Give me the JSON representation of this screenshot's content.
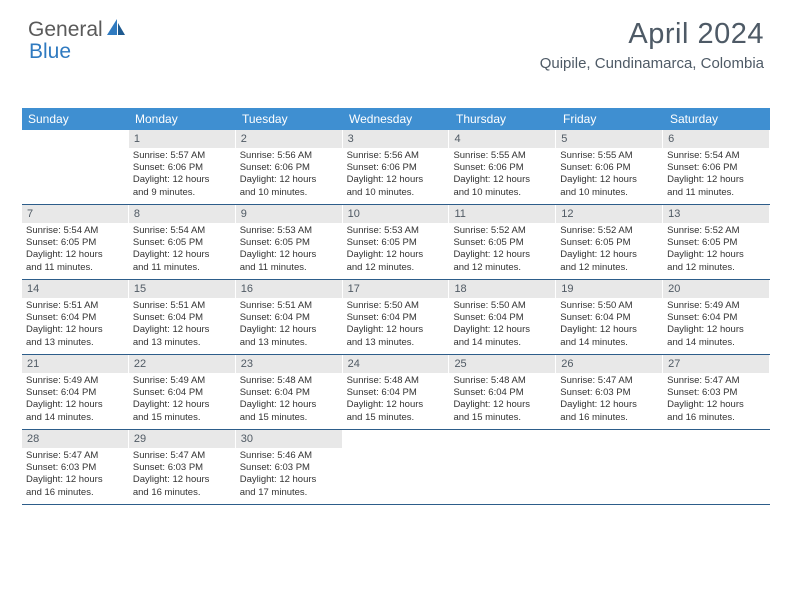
{
  "logo": {
    "text1": "General",
    "text2": "Blue"
  },
  "title": "April 2024",
  "location": "Quipile, Cundinamarca, Colombia",
  "colors": {
    "header_bg": "#3f8fd1",
    "header_text": "#ffffff",
    "row_border": "#2d5d8a",
    "daynum_bg": "#e8e8e8",
    "daynum_text": "#505a64",
    "body_text": "#333333",
    "title_text": "#4e5a66",
    "logo_gray": "#5a5a5a",
    "logo_blue": "#2f7ac0",
    "page_bg": "#ffffff"
  },
  "weekdays": [
    "Sunday",
    "Monday",
    "Tuesday",
    "Wednesday",
    "Thursday",
    "Friday",
    "Saturday"
  ],
  "weeks": [
    [
      null,
      {
        "n": "1",
        "sr": "5:57 AM",
        "ss": "6:06 PM",
        "dl1": "12 hours",
        "dl2": "and 9 minutes."
      },
      {
        "n": "2",
        "sr": "5:56 AM",
        "ss": "6:06 PM",
        "dl1": "12 hours",
        "dl2": "and 10 minutes."
      },
      {
        "n": "3",
        "sr": "5:56 AM",
        "ss": "6:06 PM",
        "dl1": "12 hours",
        "dl2": "and 10 minutes."
      },
      {
        "n": "4",
        "sr": "5:55 AM",
        "ss": "6:06 PM",
        "dl1": "12 hours",
        "dl2": "and 10 minutes."
      },
      {
        "n": "5",
        "sr": "5:55 AM",
        "ss": "6:06 PM",
        "dl1": "12 hours",
        "dl2": "and 10 minutes."
      },
      {
        "n": "6",
        "sr": "5:54 AM",
        "ss": "6:06 PM",
        "dl1": "12 hours",
        "dl2": "and 11 minutes."
      }
    ],
    [
      {
        "n": "7",
        "sr": "5:54 AM",
        "ss": "6:05 PM",
        "dl1": "12 hours",
        "dl2": "and 11 minutes."
      },
      {
        "n": "8",
        "sr": "5:54 AM",
        "ss": "6:05 PM",
        "dl1": "12 hours",
        "dl2": "and 11 minutes."
      },
      {
        "n": "9",
        "sr": "5:53 AM",
        "ss": "6:05 PM",
        "dl1": "12 hours",
        "dl2": "and 11 minutes."
      },
      {
        "n": "10",
        "sr": "5:53 AM",
        "ss": "6:05 PM",
        "dl1": "12 hours",
        "dl2": "and 12 minutes."
      },
      {
        "n": "11",
        "sr": "5:52 AM",
        "ss": "6:05 PM",
        "dl1": "12 hours",
        "dl2": "and 12 minutes."
      },
      {
        "n": "12",
        "sr": "5:52 AM",
        "ss": "6:05 PM",
        "dl1": "12 hours",
        "dl2": "and 12 minutes."
      },
      {
        "n": "13",
        "sr": "5:52 AM",
        "ss": "6:05 PM",
        "dl1": "12 hours",
        "dl2": "and 12 minutes."
      }
    ],
    [
      {
        "n": "14",
        "sr": "5:51 AM",
        "ss": "6:04 PM",
        "dl1": "12 hours",
        "dl2": "and 13 minutes."
      },
      {
        "n": "15",
        "sr": "5:51 AM",
        "ss": "6:04 PM",
        "dl1": "12 hours",
        "dl2": "and 13 minutes."
      },
      {
        "n": "16",
        "sr": "5:51 AM",
        "ss": "6:04 PM",
        "dl1": "12 hours",
        "dl2": "and 13 minutes."
      },
      {
        "n": "17",
        "sr": "5:50 AM",
        "ss": "6:04 PM",
        "dl1": "12 hours",
        "dl2": "and 13 minutes."
      },
      {
        "n": "18",
        "sr": "5:50 AM",
        "ss": "6:04 PM",
        "dl1": "12 hours",
        "dl2": "and 14 minutes."
      },
      {
        "n": "19",
        "sr": "5:50 AM",
        "ss": "6:04 PM",
        "dl1": "12 hours",
        "dl2": "and 14 minutes."
      },
      {
        "n": "20",
        "sr": "5:49 AM",
        "ss": "6:04 PM",
        "dl1": "12 hours",
        "dl2": "and 14 minutes."
      }
    ],
    [
      {
        "n": "21",
        "sr": "5:49 AM",
        "ss": "6:04 PM",
        "dl1": "12 hours",
        "dl2": "and 14 minutes."
      },
      {
        "n": "22",
        "sr": "5:49 AM",
        "ss": "6:04 PM",
        "dl1": "12 hours",
        "dl2": "and 15 minutes."
      },
      {
        "n": "23",
        "sr": "5:48 AM",
        "ss": "6:04 PM",
        "dl1": "12 hours",
        "dl2": "and 15 minutes."
      },
      {
        "n": "24",
        "sr": "5:48 AM",
        "ss": "6:04 PM",
        "dl1": "12 hours",
        "dl2": "and 15 minutes."
      },
      {
        "n": "25",
        "sr": "5:48 AM",
        "ss": "6:04 PM",
        "dl1": "12 hours",
        "dl2": "and 15 minutes."
      },
      {
        "n": "26",
        "sr": "5:47 AM",
        "ss": "6:03 PM",
        "dl1": "12 hours",
        "dl2": "and 16 minutes."
      },
      {
        "n": "27",
        "sr": "5:47 AM",
        "ss": "6:03 PM",
        "dl1": "12 hours",
        "dl2": "and 16 minutes."
      }
    ],
    [
      {
        "n": "28",
        "sr": "5:47 AM",
        "ss": "6:03 PM",
        "dl1": "12 hours",
        "dl2": "and 16 minutes."
      },
      {
        "n": "29",
        "sr": "5:47 AM",
        "ss": "6:03 PM",
        "dl1": "12 hours",
        "dl2": "and 16 minutes."
      },
      {
        "n": "30",
        "sr": "5:46 AM",
        "ss": "6:03 PM",
        "dl1": "12 hours",
        "dl2": "and 17 minutes."
      },
      null,
      null,
      null,
      null
    ]
  ],
  "labels": {
    "sunrise": "Sunrise:",
    "sunset": "Sunset:",
    "daylight": "Daylight:"
  }
}
